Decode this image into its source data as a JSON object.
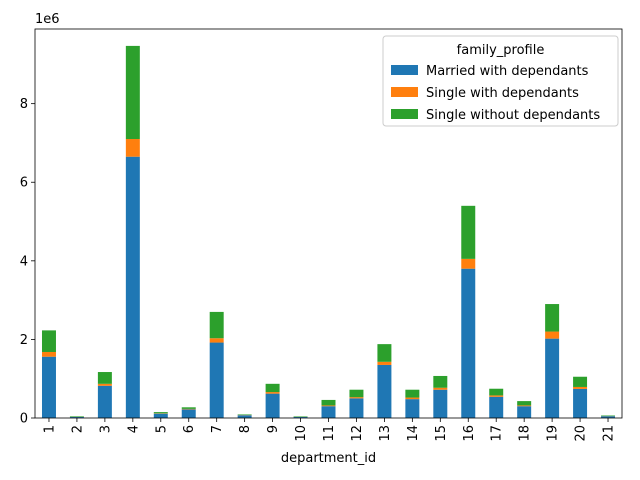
{
  "chart_data": {
    "type": "bar",
    "stacked": true,
    "title": "",
    "xlabel": "department_id",
    "ylabel": "",
    "y_offset_text": "1e6",
    "ylim": [
      0,
      9.9
    ],
    "y_ticks": [
      0,
      2,
      4,
      6,
      8
    ],
    "categories": [
      "1",
      "2",
      "3",
      "4",
      "5",
      "6",
      "7",
      "8",
      "9",
      "10",
      "11",
      "12",
      "13",
      "14",
      "15",
      "16",
      "17",
      "18",
      "19",
      "20",
      "21"
    ],
    "legend": {
      "title": "family_profile",
      "placement": "top-right"
    },
    "grid": false,
    "series": [
      {
        "name": "Married with dependants",
        "color": "#1f77b4",
        "values": [
          1.56,
          0.025,
          0.82,
          6.65,
          0.11,
          0.22,
          1.92,
          0.07,
          0.62,
          0.025,
          0.3,
          0.5,
          1.35,
          0.48,
          0.72,
          3.8,
          0.54,
          0.3,
          2.02,
          0.74,
          0.045
        ]
      },
      {
        "name": "Single with dependants",
        "color": "#ff7f0e",
        "values": [
          0.12,
          0.002,
          0.05,
          0.45,
          0.01,
          0.012,
          0.11,
          0.005,
          0.04,
          0.002,
          0.02,
          0.03,
          0.08,
          0.04,
          0.05,
          0.25,
          0.035,
          0.02,
          0.18,
          0.05,
          0.003
        ]
      },
      {
        "name": "Single without dependants",
        "color": "#2ca02c",
        "values": [
          0.55,
          0.015,
          0.3,
          2.37,
          0.03,
          0.04,
          0.67,
          0.015,
          0.21,
          0.013,
          0.14,
          0.19,
          0.45,
          0.2,
          0.3,
          1.35,
          0.17,
          0.11,
          0.7,
          0.26,
          0.015
        ]
      }
    ]
  }
}
